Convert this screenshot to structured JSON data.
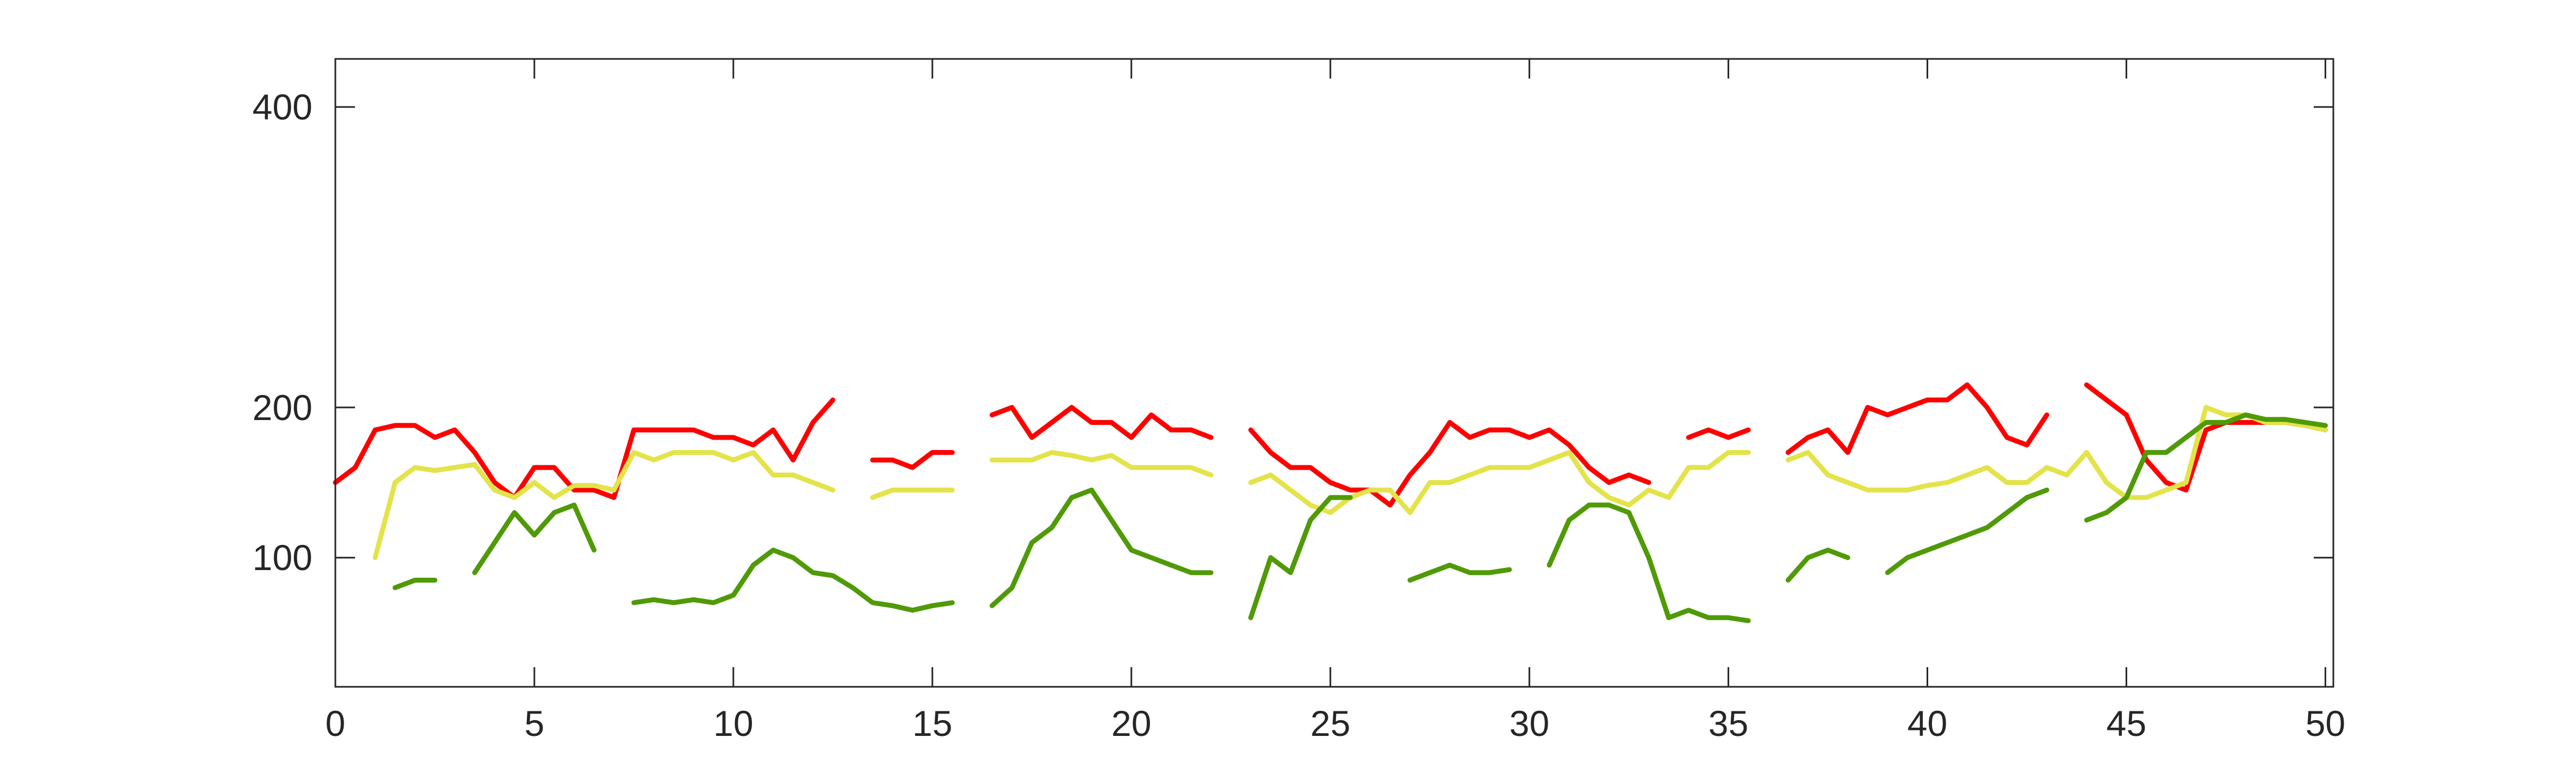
{
  "chart_data": {
    "type": "line",
    "x": [
      0,
      0.5,
      1,
      1.5,
      2,
      2.5,
      3,
      3.5,
      4,
      4.5,
      5,
      5.5,
      6,
      6.5,
      7,
      7.5,
      8,
      8.5,
      9,
      9.5,
      10,
      10.5,
      11,
      11.5,
      12,
      12.5,
      13,
      13.5,
      14,
      14.5,
      15,
      15.5,
      16,
      16.5,
      17,
      17.5,
      18,
      18.5,
      19,
      19.5,
      20,
      20.5,
      21,
      21.5,
      22,
      22.5,
      23,
      23.5,
      24,
      24.5,
      25,
      25.5,
      26,
      26.5,
      27,
      27.5,
      28,
      28.5,
      29,
      29.5,
      30,
      30.5,
      31,
      31.5,
      32,
      32.5,
      33,
      33.5,
      34,
      34.5,
      35,
      35.5,
      36,
      36.5,
      37,
      37.5,
      38,
      38.5,
      39,
      39.5,
      40,
      40.5,
      41,
      41.5,
      42,
      42.5,
      43,
      43.5,
      44,
      44.5,
      45,
      45.5,
      46,
      46.5,
      47,
      47.5,
      48,
      48.5,
      49,
      49.5,
      50
    ],
    "series": [
      {
        "color": "#ff0000",
        "values": [
          150,
          160,
          185,
          188,
          188,
          180,
          185,
          170,
          150,
          140,
          160,
          160,
          145,
          145,
          140,
          185,
          185,
          185,
          185,
          180,
          180,
          175,
          185,
          165,
          190,
          205,
          null,
          165,
          165,
          160,
          170,
          170,
          null,
          195,
          200,
          180,
          190,
          200,
          190,
          190,
          180,
          195,
          185,
          185,
          180,
          null,
          185,
          170,
          160,
          160,
          150,
          145,
          145,
          135,
          155,
          170,
          190,
          180,
          185,
          185,
          180,
          185,
          175,
          160,
          150,
          155,
          150,
          null,
          180,
          185,
          180,
          185,
          null,
          170,
          180,
          185,
          170,
          200,
          195,
          200,
          205,
          205,
          215,
          200,
          180,
          175,
          195,
          null,
          215,
          205,
          195,
          165,
          150,
          145,
          185,
          190,
          190,
          190,
          190,
          188,
          185
        ]
      },
      {
        "color": "#e3e34a",
        "values": [
          null,
          null,
          100,
          150,
          160,
          158,
          160,
          162,
          145,
          140,
          150,
          140,
          148,
          148,
          145,
          170,
          165,
          170,
          170,
          170,
          165,
          170,
          155,
          155,
          150,
          145,
          null,
          140,
          145,
          145,
          145,
          145,
          null,
          165,
          165,
          165,
          170,
          168,
          165,
          168,
          160,
          160,
          160,
          160,
          155,
          null,
          150,
          155,
          145,
          135,
          130,
          140,
          145,
          145,
          130,
          150,
          150,
          155,
          160,
          160,
          160,
          165,
          170,
          150,
          140,
          135,
          145,
          140,
          160,
          160,
          170,
          170,
          null,
          165,
          170,
          155,
          150,
          145,
          145,
          145,
          148,
          150,
          155,
          160,
          150,
          150,
          160,
          155,
          170,
          150,
          140,
          140,
          145,
          150,
          200,
          195,
          195,
          190,
          190,
          188,
          185
        ]
      },
      {
        "color": "#4f9a06",
        "values": [
          null,
          null,
          null,
          80,
          85,
          85,
          null,
          90,
          110,
          130,
          115,
          130,
          135,
          105,
          null,
          70,
          72,
          70,
          72,
          70,
          75,
          95,
          105,
          100,
          90,
          88,
          80,
          70,
          68,
          65,
          68,
          70,
          null,
          68,
          80,
          110,
          120,
          140,
          145,
          125,
          105,
          100,
          95,
          90,
          90,
          null,
          60,
          100,
          90,
          125,
          140,
          140,
          null,
          null,
          85,
          90,
          95,
          90,
          90,
          92,
          null,
          95,
          125,
          135,
          135,
          130,
          100,
          60,
          65,
          60,
          60,
          58,
          null,
          85,
          100,
          105,
          100,
          null,
          90,
          100,
          105,
          110,
          115,
          120,
          130,
          140,
          145,
          null,
          125,
          130,
          140,
          170,
          170,
          180,
          190,
          190,
          195,
          192,
          192,
          190,
          188
        ]
      }
    ],
    "xlim": [
      0,
      50.2
    ],
    "xticks": [
      0,
      5,
      10,
      15,
      20,
      25,
      30,
      35,
      40,
      45,
      50
    ],
    "ylim": [
      14,
      432
    ],
    "yticks": [
      100,
      200,
      400
    ]
  }
}
